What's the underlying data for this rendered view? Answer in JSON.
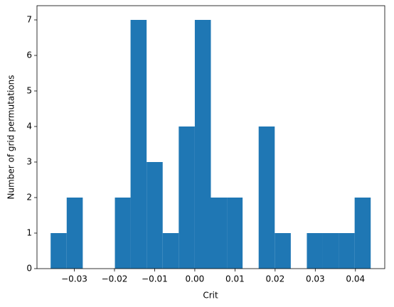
{
  "chart_data": {
    "type": "histogram",
    "xlabel": "Crit",
    "ylabel": "Number of grid permutations",
    "bins": [
      -0.0359,
      -0.0319,
      -0.0279,
      -0.0239,
      -0.0199,
      -0.016,
      -0.012,
      -0.008,
      -0.004,
      0.0,
      0.004,
      0.008,
      0.0119,
      0.0159,
      0.0199,
      0.0239,
      0.0279,
      0.0318,
      0.0358,
      0.0398,
      0.0438
    ],
    "values": [
      1,
      2,
      0,
      0,
      2,
      7,
      3,
      1,
      4,
      7,
      2,
      2,
      0,
      4,
      1,
      0,
      1,
      1,
      1,
      2
    ],
    "color": "#1f77b4",
    "xlim": [
      -0.0393,
      0.0473
    ],
    "ylim": [
      0,
      7.4
    ],
    "xticks": [
      {
        "value": -0.03,
        "label": "−0.03"
      },
      {
        "value": -0.02,
        "label": "−0.02"
      },
      {
        "value": -0.01,
        "label": "−0.01"
      },
      {
        "value": 0.0,
        "label": "0.00"
      },
      0.01,
      0.02,
      0.03,
      0.04
    ],
    "yticks": [
      0,
      1,
      2,
      3,
      4,
      5,
      6,
      7
    ],
    "grid": false
  }
}
